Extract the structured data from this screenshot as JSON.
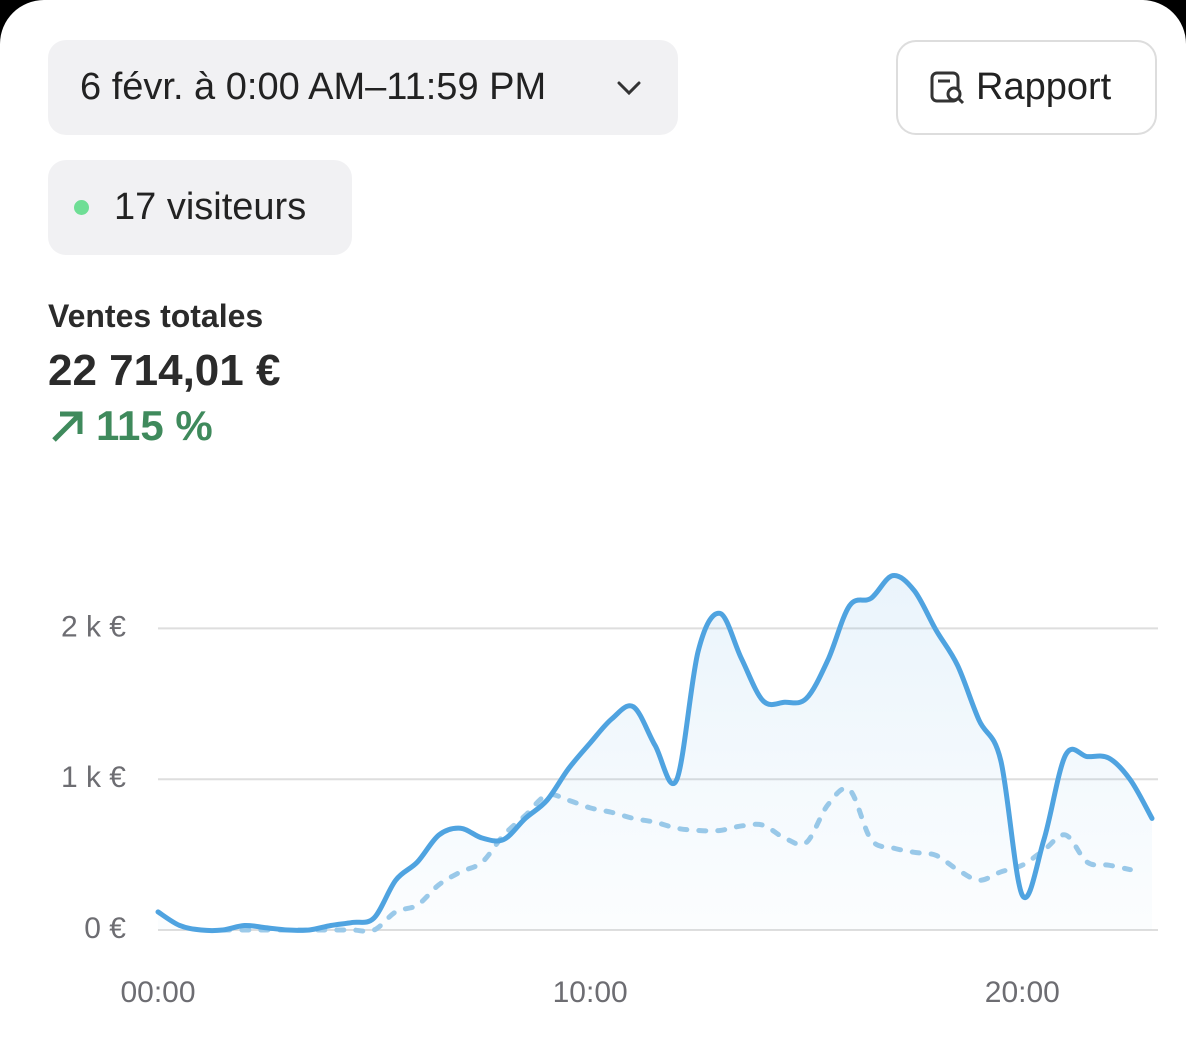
{
  "header": {
    "date_range": "6 févr. à 0:00 AM–11:59 PM",
    "report_button": "Rapport",
    "visitors": "17 visiteurs"
  },
  "summary": {
    "title": "Ventes totales",
    "total": "22 714,01 €",
    "change": "115 %"
  },
  "chart_data": {
    "type": "line",
    "x": [
      0,
      0.5,
      1,
      1.5,
      2,
      2.5,
      3,
      3.5,
      4,
      4.5,
      5,
      5.5,
      6,
      6.5,
      7,
      7.5,
      8,
      8.5,
      9,
      9.5,
      10,
      10.5,
      11,
      11.5,
      12,
      12.5,
      13,
      13.5,
      14,
      14.5,
      15,
      15.5,
      16,
      16.5,
      17,
      17.5,
      18,
      18.5,
      19,
      19.5,
      20,
      20.5,
      21,
      21.5,
      22,
      22.5,
      23
    ],
    "series": [
      {
        "color": "#4fa3e0",
        "style": "solid",
        "values": [
          120,
          30,
          0,
          0,
          30,
          15,
          0,
          0,
          30,
          50,
          80,
          330,
          450,
          630,
          675,
          610,
          600,
          740,
          860,
          1070,
          1240,
          1400,
          1480,
          1225,
          995,
          1850,
          2100,
          1800,
          1520,
          1510,
          1535,
          1790,
          2150,
          2200,
          2350,
          2250,
          1990,
          1755,
          1390,
          1125,
          230,
          600,
          1160,
          1150,
          1140,
          995,
          740
        ]
      },
      {
        "color": "#9ccae9",
        "style": "dashed",
        "values": [
          null,
          null,
          null,
          0,
          0,
          0,
          0,
          0,
          0,
          0,
          0,
          120,
          165,
          300,
          385,
          450,
          630,
          760,
          895,
          860,
          810,
          780,
          740,
          715,
          675,
          660,
          660,
          690,
          695,
          610,
          580,
          830,
          930,
          600,
          545,
          515,
          495,
          400,
          330,
          385,
          430,
          530,
          630,
          450,
          430,
          400,
          null
        ]
      }
    ],
    "xlim": [
      0,
      23
    ],
    "ylim": [
      0,
      2500
    ],
    "xticks": [
      {
        "value": 0,
        "label": "00:00"
      },
      {
        "value": 10,
        "label": "10:00"
      },
      {
        "value": 20,
        "label": "20:00"
      }
    ],
    "yticks": [
      {
        "value": 0,
        "label": "0 €"
      },
      {
        "value": 1000,
        "label": "1 k €"
      },
      {
        "value": 2000,
        "label": "2 k €"
      }
    ],
    "grid": true
  }
}
